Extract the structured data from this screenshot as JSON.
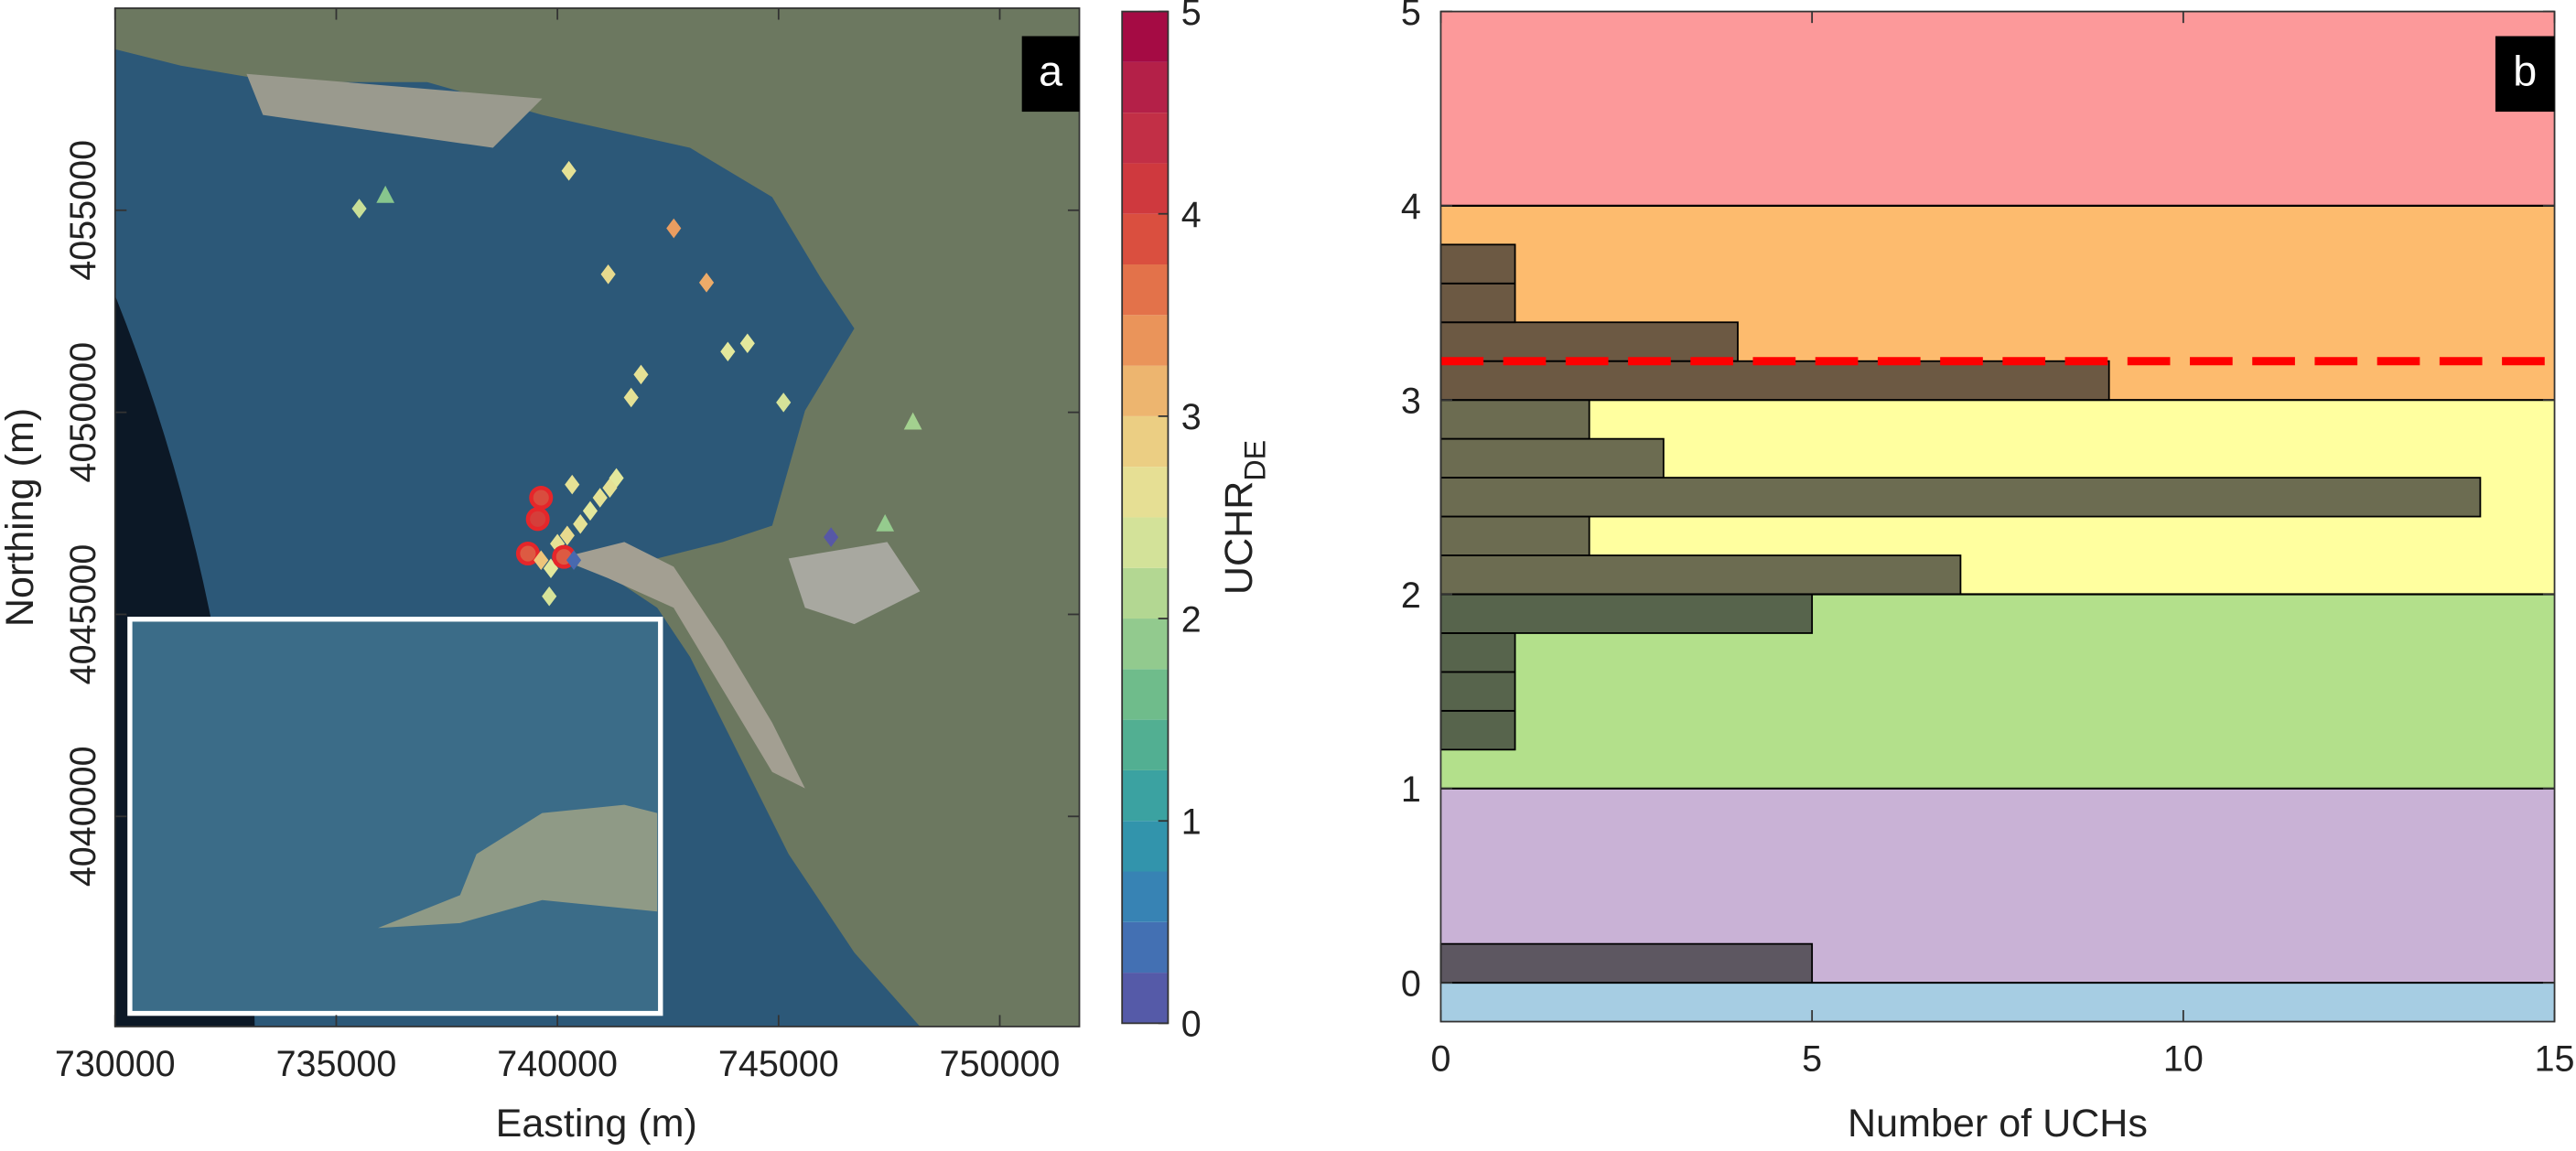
{
  "chart_data": [
    {
      "type": "scatter",
      "label": "a",
      "xlabel": "Easting (m)",
      "ylabel": "Northing (m)",
      "x": [
        735519,
        736111,
        740259,
        742630,
        741148,
        743370,
        743852,
        744296,
        741889,
        741667,
        745111,
        748037,
        746185,
        747407,
        740333,
        741333,
        741185,
        740963,
        740741,
        740519,
        740222,
        740000,
        739852,
        739630,
        739556,
        739333,
        740148,
        739815,
        739630,
        740370
      ],
      "y": [
        4055040,
        4055366,
        4055976,
        4054553,
        4053415,
        4053211,
        4051504,
        4051707,
        4050935,
        4050366,
        4050244,
        4049756,
        4046911,
        4047236,
        4048211,
        4048374,
        4048130,
        4047886,
        4047561,
        4047236,
        4046951,
        4046748,
        4046138,
        4047886,
        4047358,
        4046504,
        4046423,
        4045447,
        4046341,
        4046341
      ],
      "values": [
        2.3,
        1.8,
        2.6,
        3.3,
        2.7,
        3.2,
        2.5,
        2.5,
        2.6,
        2.6,
        2.4,
        2.0,
        0.1,
        1.9,
        2.6,
        2.5,
        2.6,
        2.6,
        2.5,
        2.6,
        2.7,
        2.6,
        2.5,
        3.9,
        4.0,
        3.8,
        3.8,
        2.4,
        3.0,
        0.3
      ],
      "markers": [
        "diamond",
        "triangle",
        "diamond",
        "diamond",
        "diamond",
        "diamond",
        "diamond",
        "diamond",
        "diamond",
        "diamond",
        "diamond",
        "triangle",
        "diamond",
        "triangle",
        "diamond",
        "diamond",
        "diamond",
        "diamond",
        "diamond",
        "diamond",
        "diamond",
        "diamond",
        "diamond",
        "circle",
        "circle",
        "circle",
        "circle",
        "diamond",
        "diamond",
        "diamond"
      ],
      "xlim": [
        730000,
        751800
      ],
      "ylim": [
        4034800,
        4060000
      ],
      "xticks": [
        730000,
        735000,
        740000,
        745000,
        750000
      ],
      "yticks": [
        4040000,
        4045000,
        4050000,
        4055000
      ],
      "colorbar": {
        "label": "UCHR",
        "label_sub": "DE",
        "clim": [
          0,
          5
        ],
        "ticks": [
          0,
          1,
          2,
          3,
          4,
          5
        ],
        "steps": 20,
        "colors": [
          "#5e4fa2",
          "#3a7bb8",
          "#2f9ca8",
          "#5db58a",
          "#a3d18f",
          "#e3e89c",
          "#eec57a",
          "#e8834f",
          "#d53e3a",
          "#bb2a4a",
          "#9e0142"
        ]
      }
    },
    {
      "type": "histogram",
      "orientation": "horizontal",
      "label": "b",
      "xlabel": "Number of UCHs",
      "bins": [
        0,
        0.2,
        0.4,
        0.6,
        0.8,
        1.0,
        1.2,
        1.4,
        1.6,
        1.8,
        2.0,
        2.2,
        2.4,
        2.6,
        2.8,
        3.0,
        3.2,
        3.4,
        3.6,
        3.8
      ],
      "counts": [
        5,
        0,
        0,
        0,
        0,
        0,
        1,
        1,
        1,
        5,
        7,
        2,
        14,
        3,
        2,
        9,
        4,
        1,
        1
      ],
      "bar_color": "#333333",
      "bar_opacity": 0.72,
      "xlim": [
        0,
        15
      ],
      "ylim": [
        -0.2,
        5
      ],
      "xticks": [
        0,
        5,
        10,
        15
      ],
      "yticks": [
        0,
        1,
        2,
        3,
        4,
        5
      ],
      "band_edges": [
        0,
        1,
        2,
        3,
        4
      ],
      "band_colors": [
        "#a6cde3",
        "#c9b2d6",
        "#b3e08b",
        "#ffff9f",
        "#fdbb6e",
        "#fc999a"
      ],
      "threshold": 3.2,
      "threshold_color": "#ff0000"
    }
  ]
}
